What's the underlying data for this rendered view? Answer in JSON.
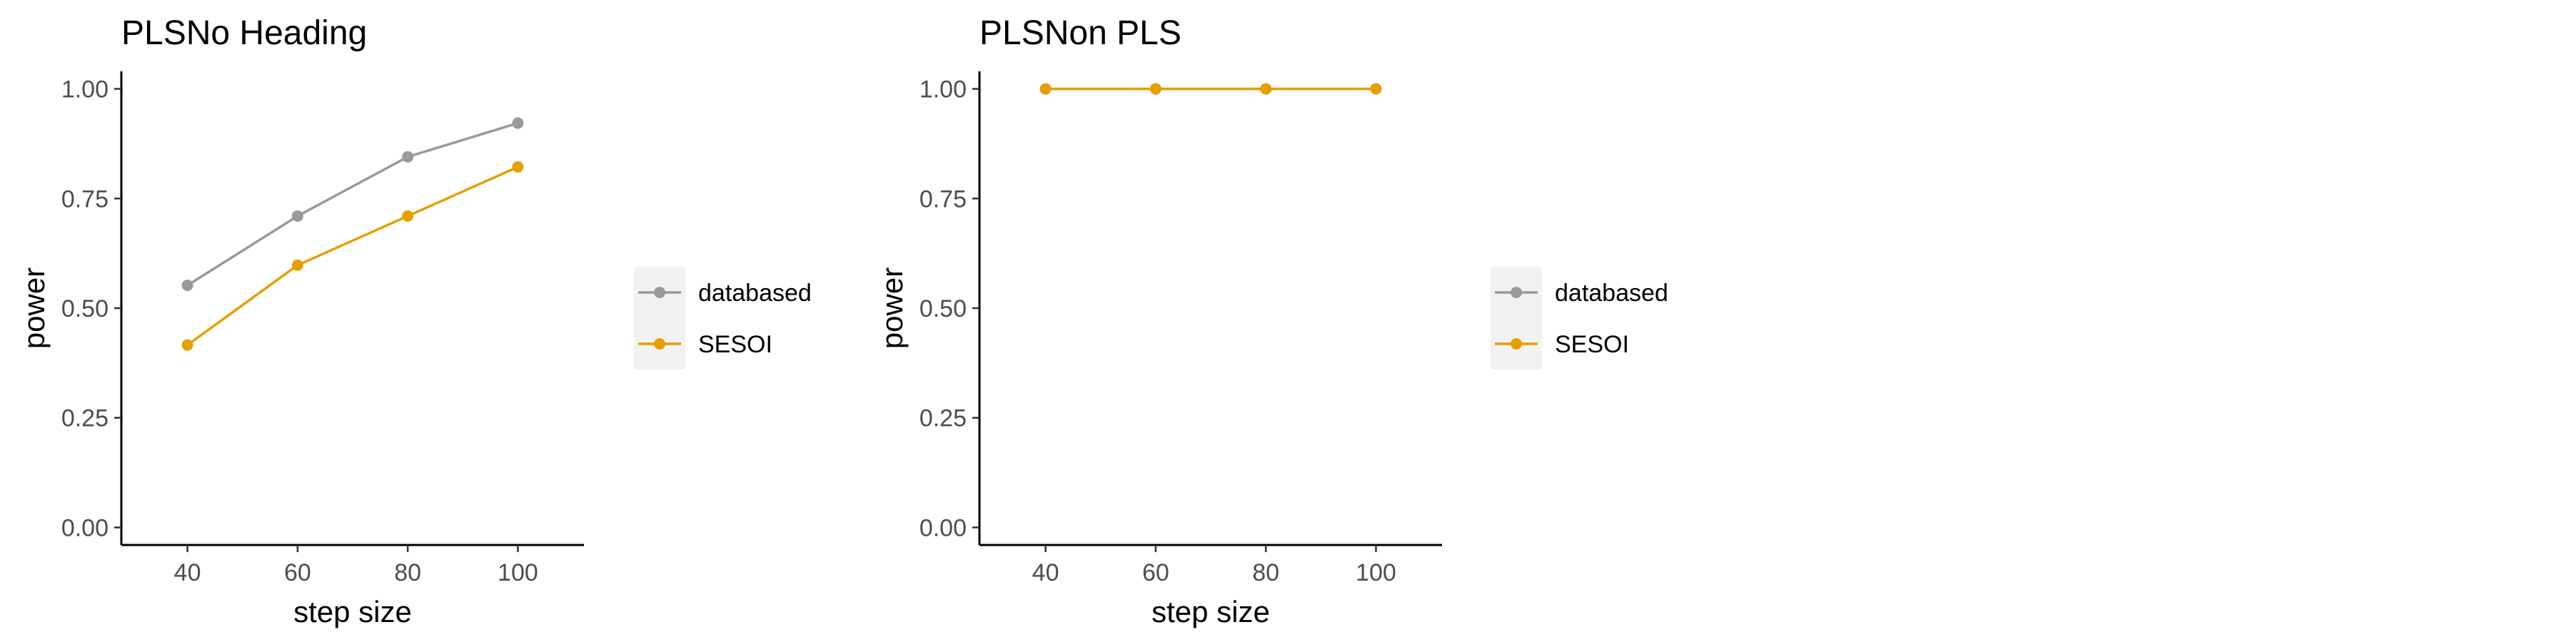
{
  "colors": {
    "databased": "#999999",
    "SESOI": "#E69F00",
    "axis": "#000000",
    "tick_label": "#4d4d4d",
    "legend_key_bg": "#f2f2f2"
  },
  "chart_data": [
    {
      "type": "line",
      "title": "PLSNo Heading",
      "xlabel": "step size",
      "ylabel": "power",
      "x": [
        40,
        60,
        80,
        100
      ],
      "xlim": [
        28,
        112
      ],
      "ylim": [
        -0.04,
        1.04
      ],
      "xticks": [
        "40",
        "60",
        "80",
        "100"
      ],
      "yticks": [
        "0.00",
        "0.25",
        "0.50",
        "0.75",
        "1.00"
      ],
      "series": [
        {
          "name": "databased",
          "values": [
            0.552,
            0.71,
            0.845,
            0.922
          ]
        },
        {
          "name": "SESOI",
          "values": [
            0.416,
            0.598,
            0.71,
            0.822
          ]
        }
      ],
      "legend": "right"
    },
    {
      "type": "line",
      "title": "PLSNon PLS",
      "xlabel": "step size",
      "ylabel": "power",
      "x": [
        40,
        60,
        80,
        100
      ],
      "xlim": [
        28,
        112
      ],
      "ylim": [
        -0.04,
        1.04
      ],
      "xticks": [
        "40",
        "60",
        "80",
        "100"
      ],
      "yticks": [
        "0.00",
        "0.25",
        "0.50",
        "0.75",
        "1.00"
      ],
      "series": [
        {
          "name": "databased",
          "values": [
            1.0,
            1.0,
            1.0,
            1.0
          ]
        },
        {
          "name": "SESOI",
          "values": [
            1.0,
            1.0,
            1.0,
            1.0
          ]
        }
      ],
      "legend": "right"
    }
  ]
}
